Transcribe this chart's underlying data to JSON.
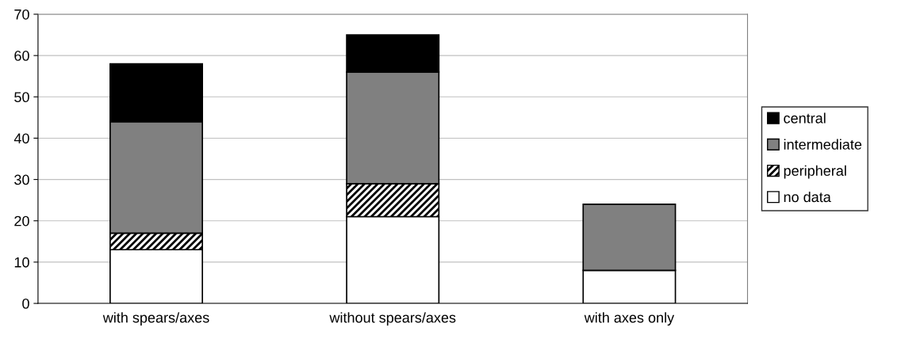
{
  "chart_data": {
    "type": "bar",
    "stacked": true,
    "categories": [
      "with spears/axes",
      "without spears/axes",
      "with axes only"
    ],
    "series": [
      {
        "name": "no data",
        "color": "#ffffff",
        "values": [
          13,
          21,
          8
        ]
      },
      {
        "name": "peripheral",
        "color": "#000000",
        "values": [
          4,
          8,
          0
        ]
      },
      {
        "name": "intermediate",
        "color": "#808080",
        "values": [
          27,
          27,
          16
        ]
      },
      {
        "name": "central",
        "color": "#000000",
        "values": [
          14,
          9,
          0
        ]
      }
    ],
    "ylim": [
      0,
      70
    ],
    "yticks": [
      0,
      10,
      20,
      30,
      40,
      50,
      60,
      70
    ],
    "grid": "y",
    "legend": "right"
  }
}
